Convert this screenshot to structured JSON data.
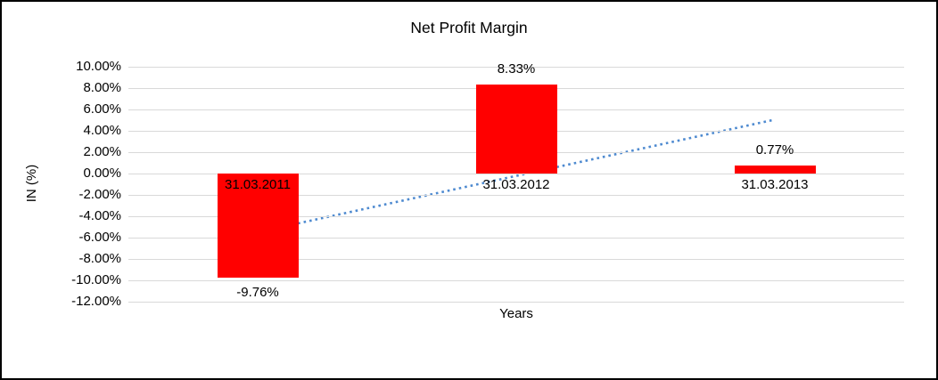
{
  "chart_data": {
    "type": "bar",
    "title": "Net Profit Margin",
    "xlabel": "Years",
    "ylabel": "IN (%)",
    "categories": [
      "31.03.2011",
      "31.03.2012",
      "31.03.2013"
    ],
    "values": [
      -9.76,
      8.33,
      0.77
    ],
    "data_labels": [
      "-9.76%",
      "8.33%",
      "0.77%"
    ],
    "y_ticks": [
      "10.00%",
      "8.00%",
      "6.00%",
      "4.00%",
      "2.00%",
      "0.00%",
      "-2.00%",
      "-4.00%",
      "-6.00%",
      "-8.00%",
      "-10.00%",
      "-12.00%"
    ],
    "y_tick_values": [
      10,
      8,
      6,
      4,
      2,
      0,
      -2,
      -4,
      -6,
      -8,
      -10,
      -12
    ],
    "ylim": [
      -12,
      10
    ],
    "grid": true,
    "legend": "none",
    "bar_color": "#ff0000",
    "gridline_color": "#d9d9d9",
    "text_color": "#000000",
    "trendline": {
      "type": "linear",
      "style": "dotted",
      "color": "#4e8ad0",
      "start_value": -5.49,
      "end_value": 5.05
    }
  }
}
